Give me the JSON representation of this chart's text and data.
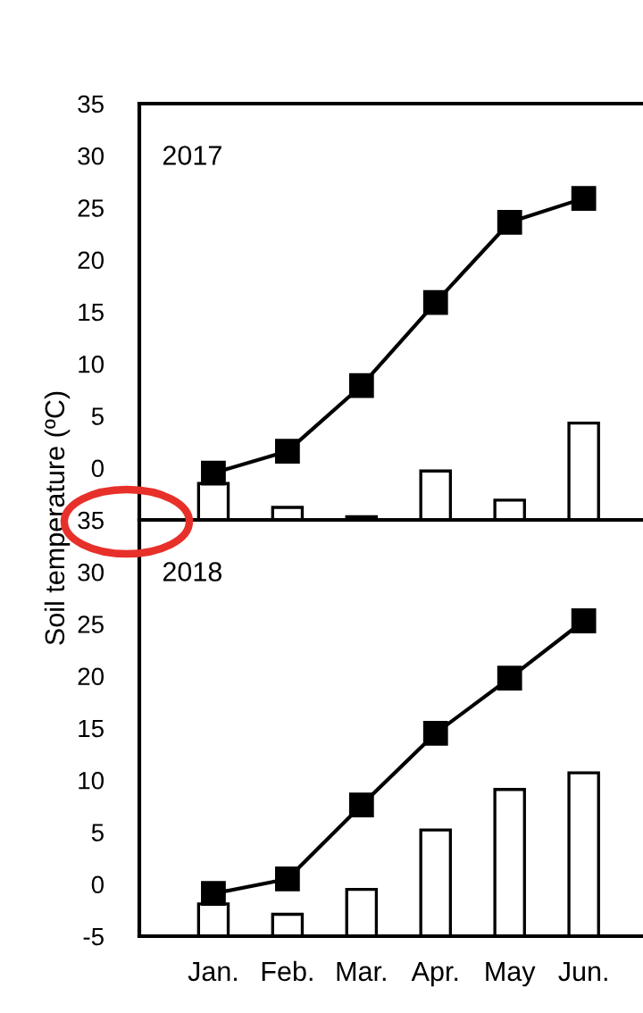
{
  "chart_data": [
    {
      "type": "bar",
      "ylabel": "Soil temperature (ºC)",
      "annotations": [
        "2017"
      ],
      "categories": [
        null,
        null,
        null,
        null,
        null,
        null
      ],
      "ylim": [
        -5,
        35
      ],
      "yticks": [
        {
          "value": -5,
          "label": null
        },
        0,
        5,
        10,
        15,
        20,
        25,
        30,
        35
      ],
      "tick_labels": "y",
      "grid": false,
      "legend": false,
      "series": [
        {
          "color": "#ffffff",
          "base": [
            -5,
            -5,
            -5,
            -5,
            -5,
            -5
          ],
          "values": [
            3.5,
            1.2,
            0.3,
            4.7,
            1.9,
            9.3
          ]
        },
        {
          "type": "line",
          "color": "#000000",
          "marker": "square",
          "line_style": "solid",
          "values": [
            -0.5,
            1.6,
            7.9,
            15.9,
            23.6,
            25.9
          ]
        }
      ]
    },
    {
      "type": "bar",
      "annotations": [
        "2018"
      ],
      "categories": [
        "Jan.",
        "Feb.",
        "Mar.",
        "Apr.",
        "May",
        "Jun."
      ],
      "ylim": [
        -5,
        35
      ],
      "yticks": [
        -5,
        0,
        5,
        10,
        15,
        20,
        25,
        30,
        35
      ],
      "grid": false,
      "legend": false,
      "series": [
        {
          "color": "#ffffff",
          "base": [
            -5,
            -5,
            -5,
            -5,
            -5,
            -5
          ],
          "values": [
            3.1,
            2.1,
            4.5,
            10.2,
            14.1,
            15.7
          ]
        },
        {
          "type": "line",
          "color": "#000000",
          "marker": "square",
          "line_style": "solid",
          "values": [
            -0.9,
            0.5,
            7.6,
            14.5,
            19.8,
            25.3
          ]
        }
      ]
    }
  ]
}
